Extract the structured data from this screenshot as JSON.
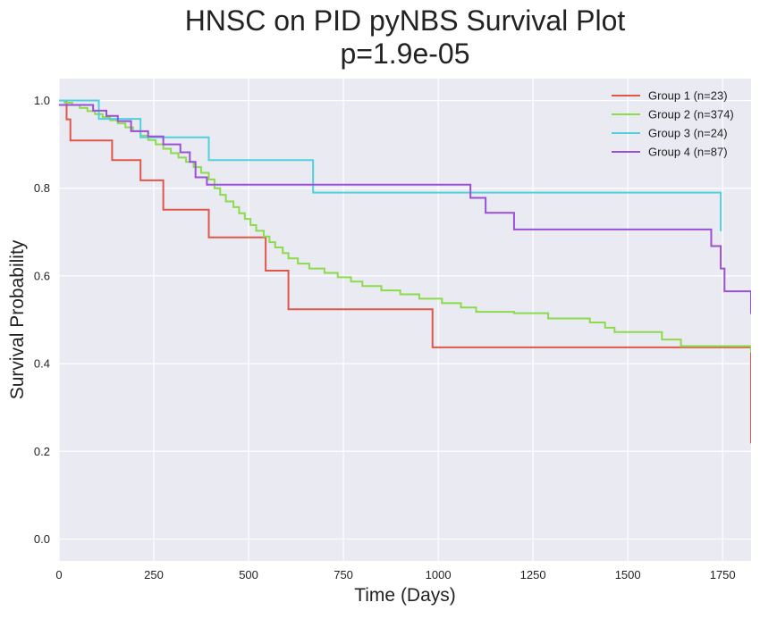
{
  "chart_data": {
    "type": "line",
    "step": true,
    "title_line1": "HNSC on PID pyNBS Survival Plot",
    "title_line2": "p=1.9e-05",
    "xlabel": "Time (Days)",
    "ylabel": "Survival Probability",
    "xlim": [
      0,
      1825
    ],
    "ylim": [
      -0.05,
      1.05
    ],
    "x_ticks": [
      0,
      250,
      500,
      750,
      1000,
      1250,
      1500,
      1750
    ],
    "y_ticks": [
      0.0,
      0.2,
      0.4,
      0.6,
      0.8,
      1.0
    ],
    "x_tick_labels": [
      "0",
      "250",
      "500",
      "750",
      "1000",
      "1250",
      "1500",
      "1750"
    ],
    "y_tick_labels": [
      "0.0",
      "0.2",
      "0.4",
      "0.6",
      "0.8",
      "1.0"
    ],
    "grid": true,
    "legend_position": "top-right",
    "colors": {
      "background": "#eaeaf2",
      "grid": "#ffffff"
    },
    "series": [
      {
        "name": "Group 1 (n=23)",
        "color": "#e0574a",
        "x": [
          0,
          20,
          30,
          120,
          140,
          215,
          275,
          395,
          545,
          605,
          985,
          1825
        ],
        "y": [
          1.0,
          0.957,
          0.909,
          0.909,
          0.864,
          0.818,
          0.751,
          0.688,
          0.612,
          0.524,
          0.437,
          0.218
        ]
      },
      {
        "name": "Group 2 (n=374)",
        "color": "#8bdb4c",
        "x": [
          0,
          15,
          35,
          55,
          75,
          95,
          115,
          135,
          155,
          175,
          195,
          215,
          235,
          255,
          275,
          295,
          315,
          335,
          355,
          375,
          395,
          410,
          425,
          440,
          460,
          475,
          490,
          505,
          520,
          540,
          555,
          570,
          590,
          605,
          630,
          660,
          700,
          735,
          770,
          800,
          850,
          900,
          950,
          1010,
          1060,
          1100,
          1200,
          1290,
          1400,
          1440,
          1465,
          1590,
          1640,
          1825
        ],
        "y": [
          1.0,
          0.995,
          0.99,
          0.983,
          0.976,
          0.969,
          0.962,
          0.955,
          0.948,
          0.939,
          0.93,
          0.92,
          0.91,
          0.9,
          0.89,
          0.88,
          0.87,
          0.86,
          0.848,
          0.835,
          0.82,
          0.8,
          0.785,
          0.77,
          0.757,
          0.743,
          0.73,
          0.716,
          0.703,
          0.69,
          0.677,
          0.665,
          0.652,
          0.64,
          0.628,
          0.617,
          0.607,
          0.597,
          0.587,
          0.577,
          0.567,
          0.558,
          0.548,
          0.538,
          0.528,
          0.518,
          0.515,
          0.503,
          0.494,
          0.482,
          0.472,
          0.455,
          0.44,
          0.425
        ]
      },
      {
        "name": "Group 3 (n=24)",
        "color": "#4fd2de",
        "x": [
          0,
          80,
          105,
          215,
          395,
          670,
          675,
          1745
        ],
        "y": [
          1.0,
          1.0,
          0.958,
          0.916,
          0.864,
          0.79,
          0.79,
          0.702
        ]
      },
      {
        "name": "Group 4 (n=87)",
        "color": "#9b4fd8",
        "x": [
          0,
          90,
          125,
          155,
          190,
          235,
          275,
          320,
          345,
          360,
          390,
          670,
          1085,
          1125,
          1200,
          1720,
          1745,
          1755,
          1825
        ],
        "y": [
          0.99,
          0.977,
          0.965,
          0.953,
          0.93,
          0.918,
          0.9,
          0.882,
          0.86,
          0.825,
          0.808,
          0.808,
          0.778,
          0.744,
          0.706,
          0.668,
          0.617,
          0.565,
          0.513
        ]
      }
    ]
  }
}
